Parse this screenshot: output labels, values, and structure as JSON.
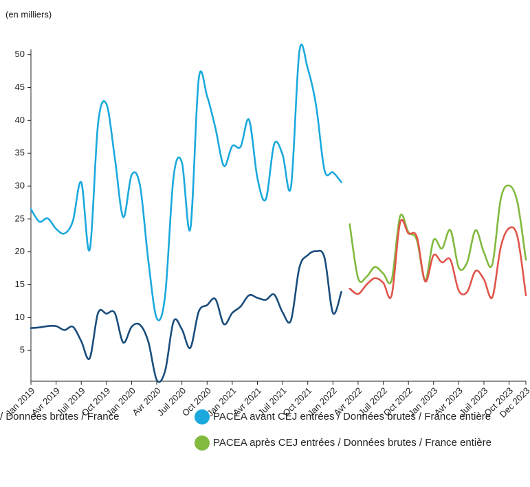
{
  "chart_data": {
    "type": "line",
    "y_label": "(en milliers)",
    "categories": [
      "Jan 2019",
      null,
      null,
      "Avr 2019",
      null,
      null,
      "Juil 2019",
      null,
      null,
      "Oct 2019",
      null,
      null,
      "Jan 2020",
      null,
      null,
      "Avr 2020",
      null,
      null,
      "Juil 2020",
      null,
      null,
      "Oct 2020",
      null,
      null,
      "Jan 2021",
      null,
      null,
      "Avr 2021",
      null,
      null,
      "Juil 2021",
      null,
      null,
      "Oct 2021",
      null,
      null,
      "Jan 2022",
      null,
      null,
      "Avr 2022",
      null,
      null,
      "Juil 2022",
      null,
      null,
      "Oct 2022",
      null,
      null,
      "Jan 2023",
      null,
      null,
      "Avr 2023",
      null,
      null,
      "Juil 2023",
      null,
      null,
      "Oct 2023",
      null,
      "Dec 2023"
    ],
    "ylim": [
      0,
      50.8
    ],
    "yticks": [
      5,
      10,
      15,
      20,
      25,
      30,
      35,
      40,
      45,
      50
    ],
    "series": [
      {
        "name": "/ Données brutes / France",
        "color": "#1a4d7c",
        "values": [
          8.4,
          8.5,
          8.7,
          8.7,
          8.1,
          8.6,
          6.4,
          3.8,
          10.7,
          10.6,
          10.7,
          6.2,
          8.6,
          8.9,
          6.3,
          0.5,
          1.9,
          9.4,
          8.2,
          5.4,
          10.9,
          11.9,
          12.8,
          9.0,
          10.7,
          11.7,
          13.4,
          13.0,
          12.7,
          13.5,
          10.8,
          9.6,
          17.6,
          19.5,
          20.1,
          19.1,
          10.7,
          13.9,
          null,
          null,
          null,
          null,
          null,
          null,
          null,
          null,
          null,
          null,
          null,
          null,
          null,
          null,
          null,
          null,
          null,
          null,
          null,
          null,
          null,
          null
        ]
      },
      {
        "name": "PACEA avant CEJ entrées / Données brutes / France entière",
        "color": "#1ba9dd",
        "values": [
          26.5,
          24.6,
          25.1,
          23.5,
          22.8,
          24.7,
          30.6,
          20.3,
          39.5,
          42.5,
          34.3,
          25.3,
          31.7,
          30.1,
          18.6,
          9.9,
          13.4,
          31.4,
          33.6,
          23.5,
          46.3,
          43.7,
          38.8,
          33.1,
          36.1,
          36.0,
          40.1,
          31.2,
          28.0,
          36.4,
          34.8,
          29.9,
          50.5,
          47.9,
          42.2,
          32.4,
          32.1,
          30.6,
          null,
          null,
          null,
          null,
          null,
          null,
          null,
          null,
          null,
          null,
          null,
          null,
          null,
          null,
          null,
          null,
          null,
          null,
          null,
          null,
          null,
          null
        ]
      },
      {
        "name": "PACEA après CEJ entrées / Données brutes / France entière",
        "color": "#82b93f",
        "values": [
          null,
          null,
          null,
          null,
          null,
          null,
          null,
          null,
          null,
          null,
          null,
          null,
          null,
          null,
          null,
          null,
          null,
          null,
          null,
          null,
          null,
          null,
          null,
          null,
          null,
          null,
          null,
          null,
          null,
          null,
          null,
          null,
          null,
          null,
          null,
          null,
          null,
          null,
          24.2,
          16.0,
          16.2,
          17.7,
          16.7,
          15.7,
          25.4,
          23.0,
          21.8,
          15.7,
          21.8,
          20.5,
          23.3,
          17.6,
          18.4,
          23.3,
          19.9,
          18.1,
          28.0,
          30.1,
          27.5,
          18.8
        ]
      },
      {
        "color": "#e0554a",
        "values": [
          null,
          null,
          null,
          null,
          null,
          null,
          null,
          null,
          null,
          null,
          null,
          null,
          null,
          null,
          null,
          null,
          null,
          null,
          null,
          null,
          null,
          null,
          null,
          null,
          null,
          null,
          null,
          null,
          null,
          null,
          null,
          null,
          null,
          null,
          null,
          null,
          null,
          null,
          14.4,
          13.6,
          15.0,
          16.0,
          15.3,
          13.4,
          24.4,
          22.8,
          22.3,
          15.5,
          19.5,
          18.4,
          18.8,
          14.1,
          13.9,
          17.1,
          15.8,
          13.1,
          20.7,
          23.6,
          22.3,
          13.4
        ]
      }
    ]
  }
}
